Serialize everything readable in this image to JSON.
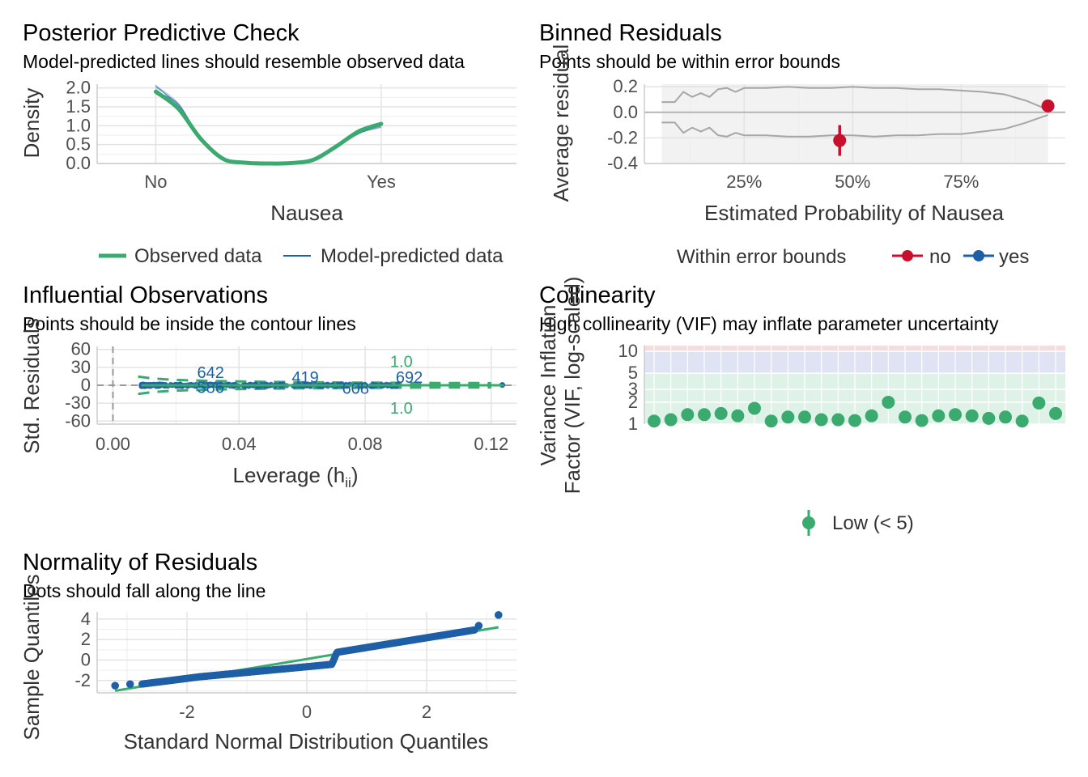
{
  "panels": {
    "ppc": {
      "title": "Posterior Predictive Check",
      "subtitle": "Model-predicted lines should resemble observed data"
    },
    "binned": {
      "title": "Binned Residuals",
      "subtitle": "Points should be within error bounds"
    },
    "influential": {
      "title": "Influential Observations",
      "subtitle": "Points should be inside the contour lines"
    },
    "collinearity": {
      "title": "Collinearity",
      "subtitle": "High collinearity (VIF) may inflate parameter uncertainty"
    },
    "normality": {
      "title": "Normality of Residuals",
      "subtitle": "Dots should fall along the line"
    }
  },
  "colors": {
    "green": "#3aaa6f",
    "blue": "#1f5fa6",
    "red": "#c8102e",
    "grid": "#e3e3e3",
    "tick": "#4d4d4d",
    "bound": "#a6a6a6"
  },
  "chart_data": [
    {
      "id": "ppc",
      "type": "line",
      "title": "Posterior Predictive Check",
      "subtitle": "Model-predicted lines should resemble observed data",
      "xlabel": "Nausea",
      "ylabel": "Density",
      "categories": [
        "No",
        "Yes"
      ],
      "xlim": [
        0.74,
        2.6
      ],
      "ylim": [
        0,
        2.1
      ],
      "yticks": [
        0.0,
        0.5,
        1.0,
        1.5,
        2.0
      ],
      "ytick_labels": [
        "0.0",
        "0.5",
        "1.0",
        "1.5",
        "2.0"
      ],
      "grid": true,
      "legend_position": "bottom",
      "series": [
        {
          "name": "Observed data",
          "x": [
            1.0,
            1.1,
            1.2,
            1.3,
            1.4,
            1.5,
            1.6,
            1.7,
            1.8,
            1.9,
            2.0
          ],
          "y": [
            1.9,
            1.45,
            0.65,
            0.12,
            0.02,
            0.0,
            0.01,
            0.1,
            0.45,
            0.85,
            1.05
          ]
        },
        {
          "name": "Model-predicted data",
          "x": [
            1.0,
            1.1,
            1.2,
            1.3,
            1.4,
            1.5,
            1.6,
            1.7,
            1.8,
            1.9,
            2.0
          ],
          "y": [
            1.95,
            1.5,
            0.68,
            0.13,
            0.02,
            0.0,
            0.01,
            0.1,
            0.44,
            0.83,
            1.02
          ]
        }
      ]
    },
    {
      "id": "binned",
      "type": "scatter",
      "title": "Binned Residuals",
      "subtitle": "Points should be within error bounds",
      "xlabel": "Estimated Probability of Nausea",
      "ylabel": "Average residual",
      "xlim": [
        0.02,
        0.99
      ],
      "ylim": [
        -0.4,
        0.22
      ],
      "xticks": [
        0.25,
        0.5,
        0.75
      ],
      "xtick_labels": [
        "25%",
        "50%",
        "75%"
      ],
      "yticks": [
        -0.4,
        -0.2,
        0.0,
        0.2
      ],
      "ytick_labels": [
        "-0.4",
        "-0.2",
        "0.0",
        "0.2"
      ],
      "grid": true,
      "legend_title": "Within error bounds",
      "legend_position": "bottom",
      "legend": [
        "no",
        "yes"
      ],
      "bounds_x": [
        0.06,
        0.09,
        0.11,
        0.13,
        0.15,
        0.17,
        0.19,
        0.21,
        0.23,
        0.25,
        0.3,
        0.35,
        0.4,
        0.45,
        0.5,
        0.55,
        0.6,
        0.65,
        0.7,
        0.75,
        0.8,
        0.85,
        0.9,
        0.95
      ],
      "upper": [
        0.08,
        0.08,
        0.16,
        0.12,
        0.15,
        0.12,
        0.18,
        0.19,
        0.16,
        0.19,
        0.19,
        0.2,
        0.19,
        0.19,
        0.2,
        0.19,
        0.19,
        0.18,
        0.18,
        0.17,
        0.16,
        0.14,
        0.09,
        0.02
      ],
      "lower": [
        -0.08,
        -0.08,
        -0.16,
        -0.12,
        -0.15,
        -0.12,
        -0.18,
        -0.19,
        -0.16,
        -0.18,
        -0.18,
        -0.19,
        -0.19,
        -0.18,
        -0.18,
        -0.19,
        -0.18,
        -0.18,
        -0.17,
        -0.17,
        -0.15,
        -0.13,
        -0.08,
        -0.02
      ],
      "points": [
        {
          "x": 0.47,
          "y": -0.22,
          "err": 0.12,
          "group": "no"
        },
        {
          "x": 0.95,
          "y": 0.05,
          "err": 0.0,
          "group": "no"
        }
      ]
    },
    {
      "id": "influential",
      "type": "scatter",
      "title": "Influential Observations",
      "subtitle": "Points should be inside the contour lines",
      "xlabel": "Leverage (hii)",
      "xlabel_main": "Leverage (h",
      "xlabel_sub": "ii",
      "xlabel_close": ")",
      "ylabel": "Std. Residuals",
      "xlim": [
        -0.005,
        0.128
      ],
      "ylim": [
        -65,
        65
      ],
      "xticks": [
        0.0,
        0.04,
        0.08,
        0.12
      ],
      "xtick_labels": [
        "0.00",
        "0.04",
        "0.08",
        "0.12"
      ],
      "yticks": [
        -60,
        -30,
        0,
        30,
        60
      ],
      "ytick_labels": [
        "-60",
        "-30",
        "0",
        "30",
        "60"
      ],
      "grid": true,
      "contour_labels": [
        "1.0",
        "1.0"
      ],
      "point_labels": [
        {
          "label": "642",
          "x": 0.031,
          "y": 12
        },
        {
          "label": "586",
          "x": 0.031,
          "y": -13
        },
        {
          "label": "419",
          "x": 0.061,
          "y": 4
        },
        {
          "label": "608",
          "x": 0.077,
          "y": -14
        },
        {
          "label": "692",
          "x": 0.094,
          "y": 4
        }
      ]
    },
    {
      "id": "collinearity",
      "type": "scatter",
      "title": "Collinearity",
      "subtitle": "High collinearity (VIF) may inflate parameter uncertainty",
      "xlabel": "",
      "ylabel": "Variance Inflation Factor (VIF, log-scaled)",
      "ylabel_line1": "Variance Inflation",
      "ylabel_line2": "Factor (VIF, log-scaled)",
      "y_scale": "log",
      "yticks": [
        1,
        2,
        3,
        5,
        10
      ],
      "ytick_labels": [
        "1",
        "2",
        "3",
        "5",
        "10"
      ],
      "grid": true,
      "legend": [
        "Low (< 5)"
      ],
      "legend_position": "bottom",
      "values": [
        1.1,
        1.15,
        1.35,
        1.35,
        1.4,
        1.3,
        1.65,
        1.1,
        1.25,
        1.25,
        1.15,
        1.15,
        1.12,
        1.3,
        2.0,
        1.25,
        1.12,
        1.3,
        1.35,
        1.3,
        1.2,
        1.25,
        1.1,
        1.95,
        1.4
      ]
    },
    {
      "id": "normality",
      "type": "scatter",
      "title": "Normality of Residuals",
      "subtitle": "Dots should fall along the line",
      "xlabel": "Standard Normal Distribution Quantiles",
      "ylabel": "Sample Quantiles",
      "xlim": [
        -3.5,
        3.5
      ],
      "ylim": [
        -3.2,
        4.7
      ],
      "xticks": [
        -2,
        0,
        2
      ],
      "xtick_labels": [
        "-2",
        "0",
        "2"
      ],
      "yticks": [
        -2,
        0,
        2,
        4
      ],
      "ytick_labels": [
        "-2",
        "0",
        "2",
        "4"
      ],
      "grid": true,
      "reference_line": {
        "x": [
          -3.2,
          3.2
        ],
        "y": [
          -3.0,
          3.2
        ]
      }
    }
  ]
}
